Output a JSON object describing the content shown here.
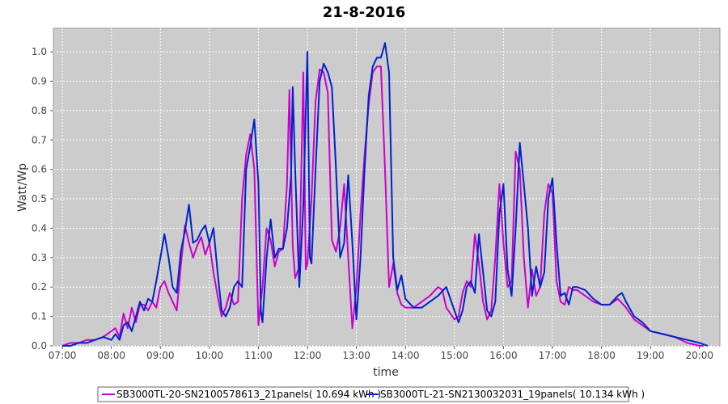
{
  "chart_data": {
    "type": "line",
    "title": "21-8-2016",
    "xlabel": "time",
    "ylabel": "Watt/Wp",
    "xlim": [
      "06:49",
      "20:25"
    ],
    "ylim": [
      0.0,
      1.08
    ],
    "x_ticks": [
      "07:00",
      "08:00",
      "09:00",
      "10:00",
      "11:00",
      "12:00",
      "13:00",
      "14:00",
      "15:00",
      "16:00",
      "17:00",
      "18:00",
      "19:00",
      "20:00"
    ],
    "y_ticks": [
      "0.0",
      "0.1",
      "0.2",
      "0.3",
      "0.4",
      "0.5",
      "0.6",
      "0.7",
      "0.8",
      "0.9",
      "1.0"
    ],
    "grid": true,
    "plot_background": "#cccccc",
    "legend_position": "bottom",
    "series": [
      {
        "name": "SB3000TL-20-SN2100578613_21panels( 10.694 kWh )",
        "color": "#cc00cc",
        "points": [
          [
            "07:00",
            0.0
          ],
          [
            "07:10",
            0.01
          ],
          [
            "07:20",
            0.01
          ],
          [
            "07:30",
            0.02
          ],
          [
            "07:40",
            0.02
          ],
          [
            "07:50",
            0.03
          ],
          [
            "08:00",
            0.05
          ],
          [
            "08:05",
            0.06
          ],
          [
            "08:10",
            0.03
          ],
          [
            "08:15",
            0.11
          ],
          [
            "08:20",
            0.06
          ],
          [
            "08:25",
            0.13
          ],
          [
            "08:30",
            0.08
          ],
          [
            "08:35",
            0.14
          ],
          [
            "08:40",
            0.14
          ],
          [
            "08:45",
            0.12
          ],
          [
            "08:50",
            0.15
          ],
          [
            "08:55",
            0.13
          ],
          [
            "09:00",
            0.2
          ],
          [
            "09:05",
            0.22
          ],
          [
            "09:10",
            0.18
          ],
          [
            "09:15",
            0.15
          ],
          [
            "09:20",
            0.12
          ],
          [
            "09:25",
            0.27
          ],
          [
            "09:30",
            0.41
          ],
          [
            "09:35",
            0.35
          ],
          [
            "09:40",
            0.3
          ],
          [
            "09:45",
            0.34
          ],
          [
            "09:50",
            0.37
          ],
          [
            "09:55",
            0.31
          ],
          [
            "10:00",
            0.35
          ],
          [
            "10:05",
            0.25
          ],
          [
            "10:10",
            0.17
          ],
          [
            "10:15",
            0.1
          ],
          [
            "10:20",
            0.13
          ],
          [
            "10:25",
            0.18
          ],
          [
            "10:30",
            0.14
          ],
          [
            "10:35",
            0.15
          ],
          [
            "10:40",
            0.5
          ],
          [
            "10:45",
            0.65
          ],
          [
            "10:50",
            0.72
          ],
          [
            "10:55",
            0.6
          ],
          [
            "11:00",
            0.07
          ],
          [
            "11:03",
            0.15
          ],
          [
            "11:05",
            0.2
          ],
          [
            "11:10",
            0.4
          ],
          [
            "11:15",
            0.36
          ],
          [
            "11:20",
            0.27
          ],
          [
            "11:25",
            0.32
          ],
          [
            "11:30",
            0.33
          ],
          [
            "11:35",
            0.55
          ],
          [
            "11:38",
            0.87
          ],
          [
            "11:42",
            0.34
          ],
          [
            "11:45",
            0.23
          ],
          [
            "11:50",
            0.27
          ],
          [
            "11:55",
            0.93
          ],
          [
            "11:58",
            0.26
          ],
          [
            "12:00",
            0.28
          ],
          [
            "12:05",
            0.5
          ],
          [
            "12:10",
            0.83
          ],
          [
            "12:15",
            0.94
          ],
          [
            "12:20",
            0.93
          ],
          [
            "12:25",
            0.86
          ],
          [
            "12:30",
            0.36
          ],
          [
            "12:35",
            0.32
          ],
          [
            "12:40",
            0.4
          ],
          [
            "12:45",
            0.55
          ],
          [
            "12:50",
            0.3
          ],
          [
            "12:55",
            0.06
          ],
          [
            "13:00",
            0.2
          ],
          [
            "13:05",
            0.45
          ],
          [
            "13:10",
            0.65
          ],
          [
            "13:15",
            0.82
          ],
          [
            "13:20",
            0.93
          ],
          [
            "13:25",
            0.95
          ],
          [
            "13:30",
            0.95
          ],
          [
            "13:35",
            0.6
          ],
          [
            "13:40",
            0.2
          ],
          [
            "13:45",
            0.28
          ],
          [
            "13:50",
            0.18
          ],
          [
            "13:55",
            0.14
          ],
          [
            "14:00",
            0.13
          ],
          [
            "14:10",
            0.13
          ],
          [
            "14:20",
            0.15
          ],
          [
            "14:30",
            0.17
          ],
          [
            "14:40",
            0.2
          ],
          [
            "14:45",
            0.19
          ],
          [
            "14:50",
            0.13
          ],
          [
            "15:00",
            0.09
          ],
          [
            "15:05",
            0.1
          ],
          [
            "15:10",
            0.18
          ],
          [
            "15:15",
            0.22
          ],
          [
            "15:20",
            0.2
          ],
          [
            "15:25",
            0.38
          ],
          [
            "15:30",
            0.28
          ],
          [
            "15:35",
            0.15
          ],
          [
            "15:40",
            0.09
          ],
          [
            "15:45",
            0.12
          ],
          [
            "15:50",
            0.3
          ],
          [
            "15:55",
            0.55
          ],
          [
            "16:00",
            0.35
          ],
          [
            "16:05",
            0.2
          ],
          [
            "16:10",
            0.22
          ],
          [
            "16:15",
            0.66
          ],
          [
            "16:20",
            0.6
          ],
          [
            "16:25",
            0.3
          ],
          [
            "16:30",
            0.13
          ],
          [
            "16:35",
            0.26
          ],
          [
            "16:40",
            0.17
          ],
          [
            "16:45",
            0.2
          ],
          [
            "16:50",
            0.45
          ],
          [
            "16:55",
            0.55
          ],
          [
            "17:00",
            0.52
          ],
          [
            "17:05",
            0.22
          ],
          [
            "17:10",
            0.15
          ],
          [
            "17:15",
            0.14
          ],
          [
            "17:20",
            0.2
          ],
          [
            "17:25",
            0.19
          ],
          [
            "17:30",
            0.19
          ],
          [
            "17:40",
            0.17
          ],
          [
            "17:50",
            0.15
          ],
          [
            "18:00",
            0.14
          ],
          [
            "18:10",
            0.14
          ],
          [
            "18:20",
            0.16
          ],
          [
            "18:30",
            0.13
          ],
          [
            "18:40",
            0.09
          ],
          [
            "18:50",
            0.07
          ],
          [
            "19:00",
            0.05
          ],
          [
            "19:15",
            0.04
          ],
          [
            "19:30",
            0.03
          ],
          [
            "19:45",
            0.01
          ],
          [
            "20:00",
            0.0
          ],
          [
            "20:05",
            0.0
          ]
        ]
      },
      {
        "name": "SB3000TL-21-SN2130032031_19panels( 10.134 kWh )",
        "color": "#0022cc",
        "points": [
          [
            "07:00",
            0.0
          ],
          [
            "07:10",
            0.0
          ],
          [
            "07:20",
            0.01
          ],
          [
            "07:30",
            0.01
          ],
          [
            "07:40",
            0.02
          ],
          [
            "07:50",
            0.03
          ],
          [
            "08:00",
            0.02
          ],
          [
            "08:05",
            0.04
          ],
          [
            "08:10",
            0.02
          ],
          [
            "08:15",
            0.07
          ],
          [
            "08:20",
            0.08
          ],
          [
            "08:25",
            0.05
          ],
          [
            "08:30",
            0.1
          ],
          [
            "08:35",
            0.15
          ],
          [
            "08:40",
            0.12
          ],
          [
            "08:45",
            0.16
          ],
          [
            "08:50",
            0.15
          ],
          [
            "08:55",
            0.22
          ],
          [
            "09:00",
            0.3
          ],
          [
            "09:05",
            0.38
          ],
          [
            "09:10",
            0.3
          ],
          [
            "09:15",
            0.2
          ],
          [
            "09:20",
            0.18
          ],
          [
            "09:25",
            0.32
          ],
          [
            "09:30",
            0.39
          ],
          [
            "09:35",
            0.48
          ],
          [
            "09:40",
            0.35
          ],
          [
            "09:45",
            0.36
          ],
          [
            "09:50",
            0.39
          ],
          [
            "09:55",
            0.41
          ],
          [
            "10:00",
            0.35
          ],
          [
            "10:05",
            0.4
          ],
          [
            "10:10",
            0.25
          ],
          [
            "10:15",
            0.12
          ],
          [
            "10:20",
            0.1
          ],
          [
            "10:25",
            0.13
          ],
          [
            "10:30",
            0.2
          ],
          [
            "10:35",
            0.22
          ],
          [
            "10:40",
            0.2
          ],
          [
            "10:45",
            0.6
          ],
          [
            "10:50",
            0.68
          ],
          [
            "10:55",
            0.77
          ],
          [
            "11:00",
            0.55
          ],
          [
            "11:03",
            0.12
          ],
          [
            "11:05",
            0.08
          ],
          [
            "11:10",
            0.3
          ],
          [
            "11:15",
            0.43
          ],
          [
            "11:20",
            0.3
          ],
          [
            "11:25",
            0.33
          ],
          [
            "11:30",
            0.33
          ],
          [
            "11:35",
            0.4
          ],
          [
            "11:40",
            0.58
          ],
          [
            "11:42",
            0.88
          ],
          [
            "11:45",
            0.6
          ],
          [
            "11:50",
            0.2
          ],
          [
            "11:55",
            0.48
          ],
          [
            "12:00",
            1.0
          ],
          [
            "12:03",
            0.3
          ],
          [
            "12:05",
            0.28
          ],
          [
            "12:10",
            0.6
          ],
          [
            "12:15",
            0.9
          ],
          [
            "12:20",
            0.96
          ],
          [
            "12:25",
            0.93
          ],
          [
            "12:30",
            0.88
          ],
          [
            "12:35",
            0.6
          ],
          [
            "12:40",
            0.3
          ],
          [
            "12:45",
            0.35
          ],
          [
            "12:50",
            0.58
          ],
          [
            "12:55",
            0.35
          ],
          [
            "13:00",
            0.09
          ],
          [
            "13:05",
            0.3
          ],
          [
            "13:10",
            0.6
          ],
          [
            "13:15",
            0.85
          ],
          [
            "13:20",
            0.95
          ],
          [
            "13:25",
            0.98
          ],
          [
            "13:30",
            0.98
          ],
          [
            "13:35",
            1.03
          ],
          [
            "13:40",
            0.93
          ],
          [
            "13:45",
            0.3
          ],
          [
            "13:50",
            0.19
          ],
          [
            "13:55",
            0.24
          ],
          [
            "14:00",
            0.16
          ],
          [
            "14:10",
            0.13
          ],
          [
            "14:20",
            0.13
          ],
          [
            "14:30",
            0.15
          ],
          [
            "14:40",
            0.17
          ],
          [
            "14:50",
            0.2
          ],
          [
            "15:00",
            0.12
          ],
          [
            "15:05",
            0.08
          ],
          [
            "15:10",
            0.12
          ],
          [
            "15:15",
            0.2
          ],
          [
            "15:20",
            0.22
          ],
          [
            "15:25",
            0.18
          ],
          [
            "15:30",
            0.38
          ],
          [
            "15:35",
            0.25
          ],
          [
            "15:40",
            0.12
          ],
          [
            "15:45",
            0.1
          ],
          [
            "15:50",
            0.15
          ],
          [
            "15:55",
            0.45
          ],
          [
            "16:00",
            0.55
          ],
          [
            "16:05",
            0.26
          ],
          [
            "16:10",
            0.17
          ],
          [
            "16:15",
            0.4
          ],
          [
            "16:20",
            0.69
          ],
          [
            "16:25",
            0.55
          ],
          [
            "16:30",
            0.4
          ],
          [
            "16:35",
            0.17
          ],
          [
            "16:40",
            0.27
          ],
          [
            "16:45",
            0.2
          ],
          [
            "16:50",
            0.25
          ],
          [
            "16:55",
            0.5
          ],
          [
            "17:00",
            0.57
          ],
          [
            "17:05",
            0.35
          ],
          [
            "17:10",
            0.17
          ],
          [
            "17:15",
            0.18
          ],
          [
            "17:20",
            0.14
          ],
          [
            "17:25",
            0.2
          ],
          [
            "17:30",
            0.2
          ],
          [
            "17:40",
            0.19
          ],
          [
            "17:50",
            0.16
          ],
          [
            "18:00",
            0.14
          ],
          [
            "18:10",
            0.14
          ],
          [
            "18:20",
            0.17
          ],
          [
            "18:25",
            0.18
          ],
          [
            "18:30",
            0.15
          ],
          [
            "18:40",
            0.1
          ],
          [
            "18:50",
            0.08
          ],
          [
            "19:00",
            0.05
          ],
          [
            "19:15",
            0.04
          ],
          [
            "19:30",
            0.03
          ],
          [
            "19:45",
            0.02
          ],
          [
            "20:00",
            0.01
          ],
          [
            "20:10",
            0.0
          ]
        ]
      }
    ]
  }
}
